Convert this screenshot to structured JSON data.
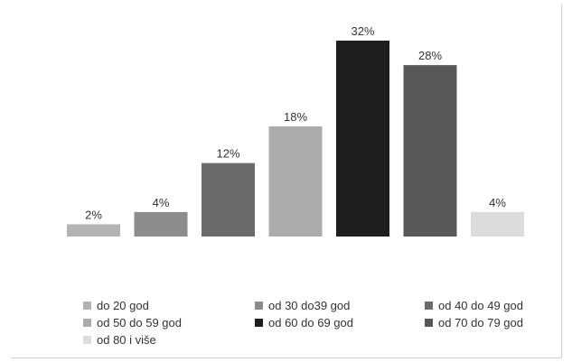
{
  "chart_data": {
    "type": "bar",
    "categories": [
      "do 20 god",
      "od 30 do39 god",
      "od 40 do 49 god",
      "od 50 do 59 god",
      "od 60 do 69 god",
      "od 70 do 79 god",
      "od 80 i više"
    ],
    "values": [
      2,
      4,
      12,
      18,
      32,
      28,
      4
    ],
    "data_labels": [
      "2%",
      "4%",
      "12%",
      "18%",
      "32%",
      "28%",
      "4%"
    ],
    "colors": [
      "#b3b3b3",
      "#8c8c8c",
      "#6b6b6b",
      "#acacac",
      "#1e1e1e",
      "#585858",
      "#dcdcdc"
    ],
    "ylim": [
      0,
      32
    ],
    "grid": false,
    "legend_position": "bottom"
  }
}
